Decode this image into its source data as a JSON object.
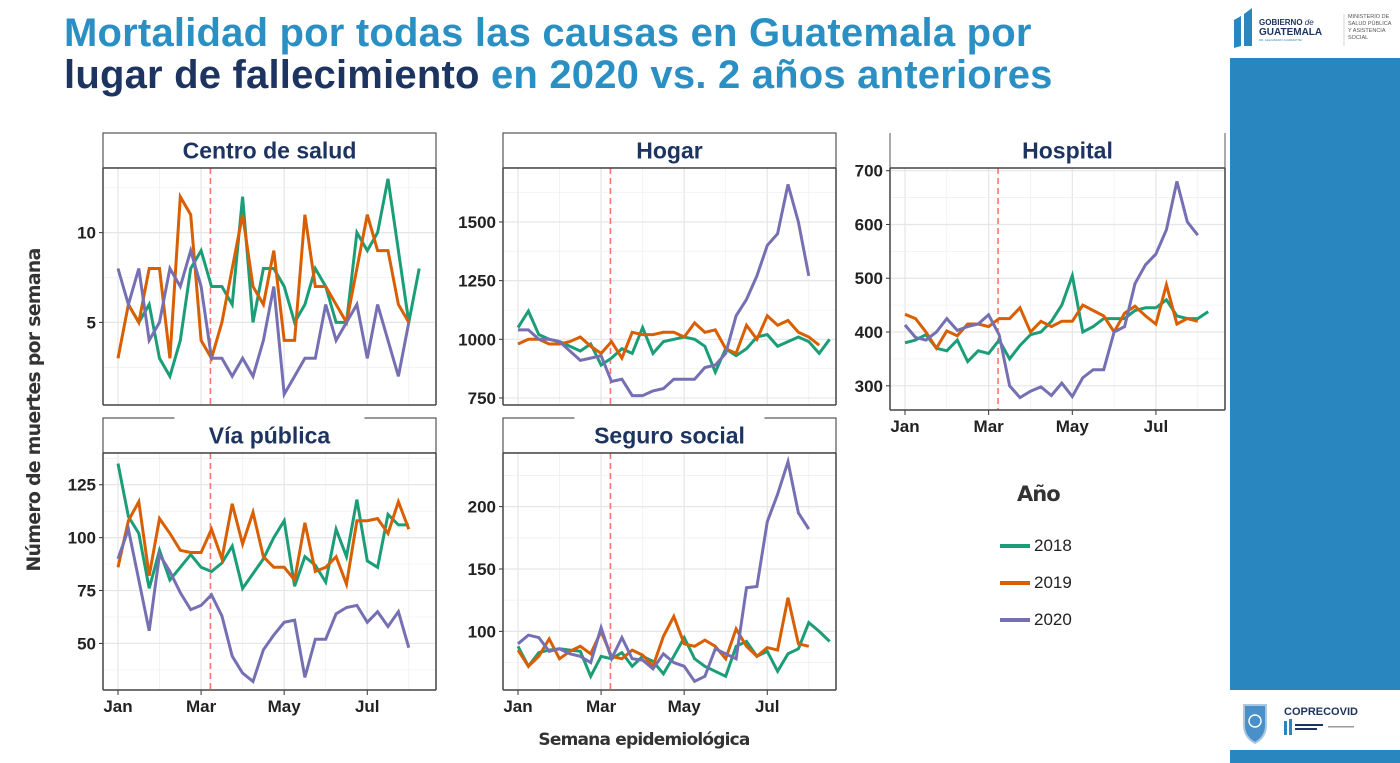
{
  "header": {
    "title_line1": "Mortalidad por todas las causas en Guatemala por",
    "title_line2_dark": "lugar de fallecimiento",
    "title_line2_light": " en 2020 vs. 2 años anteriores"
  },
  "logos": {
    "top_gov_line1": "GOBIERNO",
    "top_gov_de": "de",
    "top_gov_line2": "GUATEMALA",
    "top_gov_sub": "DR. ALEJANDRO GIAMMATTEI",
    "top_ministry": [
      "MINISTERIO DE",
      "SALUD PÚBLICA",
      "Y ASISTENCIA",
      "SOCIAL"
    ],
    "bottom_name": "COPRECOVID"
  },
  "colors": {
    "series_2018": "#1b9e77",
    "series_2019": "#d95f02",
    "series_2020": "#7570b3",
    "title_light": "#2a8fc3",
    "title_dark": "#1d3461",
    "sidebar": "#2a86bf",
    "strip_text": "#1d3461",
    "vline": "#f8766d"
  },
  "chart_data": {
    "type": "line",
    "title": "Mortalidad por todas las causas en Guatemala por lugar de fallecimiento en 2020 vs. 2 años anteriores",
    "xlabel": "Semana epidemiológica",
    "ylabel": "Número de muertes por semana",
    "x_tick_labels": [
      "Jan",
      "Mar",
      "May",
      "Jul"
    ],
    "x_tick_weeks": [
      1,
      9,
      17,
      25
    ],
    "vline_week": 9.9,
    "grid": true,
    "legend": {
      "title": "Año",
      "position": "bottom-right",
      "entries": [
        "2018",
        "2019",
        "2020"
      ]
    },
    "x": [
      1,
      2,
      3,
      4,
      5,
      6,
      7,
      8,
      9,
      10,
      11,
      12,
      13,
      14,
      15,
      16,
      17,
      18,
      19,
      20,
      21,
      22,
      23,
      24,
      25,
      26,
      27,
      28,
      29,
      30,
      31
    ],
    "panels": [
      {
        "name": "Centro de salud",
        "ylim": [
          0.4,
          13.6
        ],
        "y_ticks": [
          5,
          10
        ],
        "series": [
          {
            "name": "2018",
            "values": [
              null,
              6,
              5,
              6,
              3,
              2,
              4,
              8,
              9,
              7,
              7,
              6,
              12,
              5,
              8,
              8,
              7,
              5,
              6,
              8,
              7,
              5,
              5,
              10,
              9,
              10,
              13,
              9,
              5,
              8,
              null
            ]
          },
          {
            "name": "2019",
            "values": [
              3,
              6,
              5,
              8,
              8,
              3,
              12,
              11,
              4,
              3,
              5,
              8,
              11,
              7,
              6,
              9,
              4,
              4,
              11,
              7,
              7,
              6,
              5,
              8,
              11,
              9,
              9,
              6,
              5,
              null,
              null
            ]
          },
          {
            "name": "2020",
            "values": [
              8,
              6,
              8,
              4,
              5,
              8,
              7,
              9,
              7,
              3,
              3,
              2,
              3,
              2,
              4,
              7,
              1,
              2,
              3,
              3,
              6,
              4,
              5,
              6,
              3,
              6,
              4,
              2,
              5,
              null,
              null
            ]
          }
        ]
      },
      {
        "name": "Hogar",
        "ylim": [
          720,
          1730
        ],
        "y_ticks": [
          750,
          1000,
          1250,
          1500
        ],
        "series": [
          {
            "name": "2018",
            "values": [
              1050,
              1120,
              1020,
              1000,
              990,
              970,
              950,
              980,
              890,
              920,
              960,
              940,
              1050,
              940,
              990,
              1000,
              1010,
              1000,
              970,
              860,
              960,
              930,
              960,
              1010,
              1020,
              970,
              990,
              1010,
              990,
              940,
              1000
            ]
          },
          {
            "name": "2019",
            "values": [
              980,
              1000,
              1000,
              980,
              980,
              990,
              1010,
              970,
              940,
              990,
              920,
              1030,
              1020,
              1020,
              1030,
              1030,
              1010,
              1070,
              1030,
              1040,
              960,
              940,
              1060,
              1000,
              1100,
              1060,
              1080,
              1030,
              1010,
              975,
              null
            ]
          },
          {
            "name": "2020",
            "values": [
              1040,
              1040,
              1000,
              1000,
              990,
              950,
              910,
              920,
              930,
              820,
              830,
              760,
              760,
              780,
              790,
              830,
              830,
              830,
              880,
              890,
              940,
              1100,
              1170,
              1270,
              1400,
              1450,
              1660,
              1500,
              1270,
              null,
              null
            ]
          }
        ]
      },
      {
        "name": "Hospital",
        "ylim": [
          255,
          705
        ],
        "y_ticks": [
          300,
          400,
          500,
          600,
          700
        ],
        "series": [
          {
            "name": "2018",
            "values": [
              380,
              385,
              395,
              370,
              365,
              385,
              345,
              365,
              360,
              385,
              350,
              375,
              395,
              400,
              420,
              450,
              505,
              400,
              410,
              425,
              425,
              425,
              440,
              445,
              445,
              460,
              430,
              425,
              425,
              438,
              null
            ]
          },
          {
            "name": "2019",
            "values": [
              433,
              425,
              400,
              370,
              402,
              393,
              415,
              415,
              410,
              425,
              425,
              445,
              400,
              420,
              410,
              420,
              420,
              450,
              440,
              430,
              400,
              435,
              448,
              430,
              415,
              488,
              415,
              425,
              420,
              null,
              null
            ]
          },
          {
            "name": "2020",
            "values": [
              413,
              390,
              385,
              400,
              425,
              403,
              410,
              415,
              432,
              395,
              300,
              278,
              290,
              298,
              282,
              305,
              280,
              315,
              330,
              330,
              400,
              410,
              490,
              525,
              545,
              590,
              680,
              605,
              580,
              null,
              null
            ]
          }
        ]
      },
      {
        "name": "Vía pública",
        "ylim": [
          28,
          140
        ],
        "y_ticks": [
          50,
          75,
          100,
          125
        ],
        "series": [
          {
            "name": "2018",
            "values": [
              135,
              110,
              102,
              76,
              94,
              80,
              86,
              92,
              86,
              84,
              88,
              96,
              76,
              83,
              90,
              100,
              108,
              77,
              91,
              87,
              79,
              104,
              91,
              118,
              89,
              86,
              111,
              106,
              106,
              null,
              null
            ]
          },
          {
            "name": "2019",
            "values": [
              86,
              108,
              117,
              82,
              109,
              102,
              94,
              93,
              93,
              104,
              90,
              116,
              97,
              112,
              91,
              86,
              86,
              80,
              107,
              84,
              86,
              91,
              78,
              108,
              108,
              109,
              102,
              117,
              104,
              null,
              null
            ]
          },
          {
            "name": "2020",
            "values": [
              90,
              104,
              80,
              56,
              92,
              84,
              74,
              66,
              68,
              73,
              63,
              44,
              36,
              32,
              47,
              54,
              60,
              61,
              34,
              52,
              52,
              64,
              67,
              68,
              60,
              65,
              58,
              65,
              48,
              null,
              null
            ]
          }
        ]
      },
      {
        "name": "Seguro social",
        "ylim": [
          53,
          243
        ],
        "y_ticks": [
          100,
          150,
          200
        ],
        "series": [
          {
            "name": "2018",
            "values": [
              88,
              72,
              83,
              85,
              86,
              85,
              84,
              64,
              80,
              78,
              83,
              72,
              80,
              76,
              66,
              80,
              95,
              78,
              72,
              68,
              64,
              88,
              92,
              80,
              84,
              68,
              82,
              86,
              107,
              100,
              92
            ]
          },
          {
            "name": "2019",
            "values": [
              85,
              72,
              80,
              94,
              78,
              84,
              88,
              82,
              100,
              80,
              78,
              85,
              81,
              72,
              96,
              112,
              90,
              88,
              93,
              88,
              78,
              102,
              88,
              80,
              87,
              85,
              127,
              90,
              88,
              null,
              null
            ]
          },
          {
            "name": "2020",
            "values": [
              90,
              97,
              95,
              84,
              86,
              82,
              80,
              75,
              103,
              78,
              95,
              78,
              77,
              70,
              82,
              75,
              72,
              60,
              64,
              86,
              82,
              78,
              135,
              136,
              188,
              210,
              236,
              195,
              182,
              null,
              null
            ]
          }
        ]
      }
    ]
  }
}
